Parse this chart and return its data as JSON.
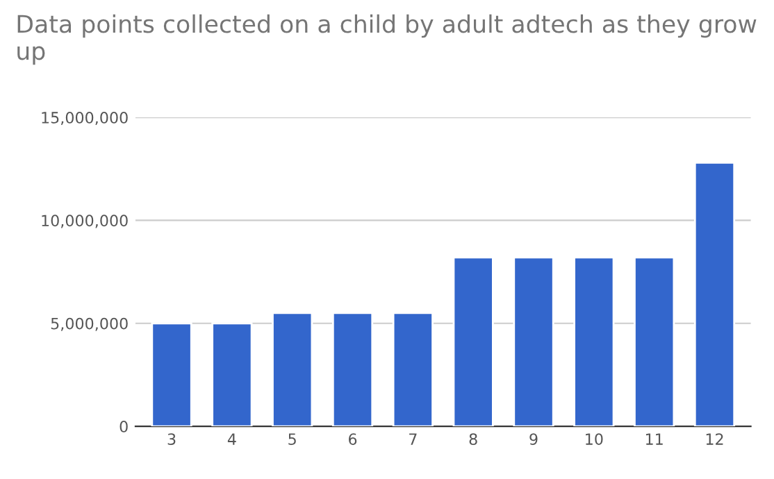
{
  "chart_data": {
    "type": "bar",
    "title": "Data points collected on a child by adult adtech as they grow up",
    "categories": [
      "3",
      "4",
      "5",
      "6",
      "7",
      "8",
      "9",
      "10",
      "11",
      "12"
    ],
    "values": [
      5000000,
      5000000,
      5500000,
      5500000,
      5500000,
      8200000,
      8200000,
      8200000,
      8200000,
      12800000
    ],
    "color": "#3366cc",
    "ylim": [
      0,
      15000000
    ],
    "yticks": [
      {
        "value": 0,
        "label": "0"
      },
      {
        "value": 5000000,
        "label": "5,000,000"
      },
      {
        "value": 10000000,
        "label": "10,000,000"
      },
      {
        "value": 15000000,
        "label": "15,000,000"
      }
    ],
    "grid": "y",
    "legend": false
  }
}
